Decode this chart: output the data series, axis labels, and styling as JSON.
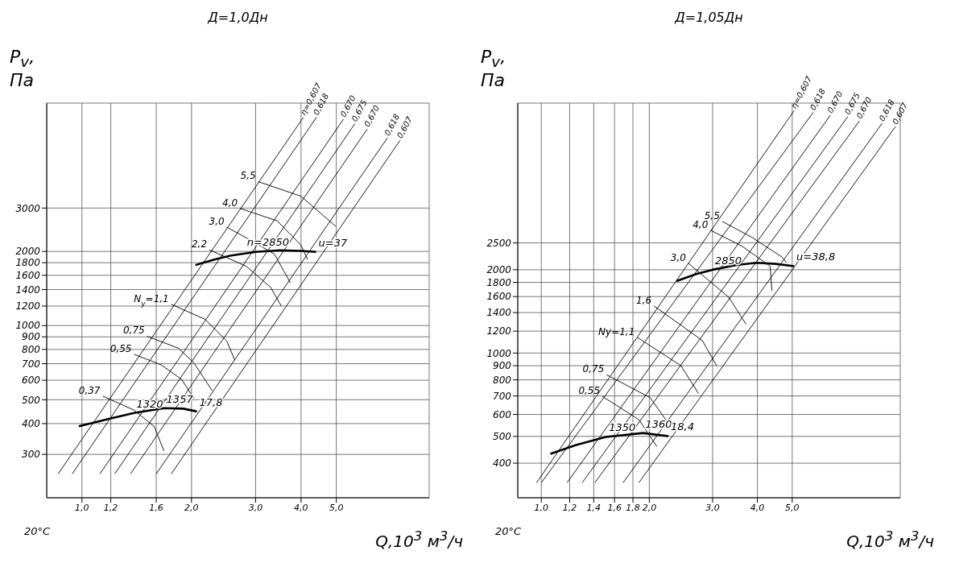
{
  "chart_data": [
    {
      "type": "line",
      "title": "Д=1,0Дн",
      "xlabel": "Q,10$^{3}$ м$^{3}$/ч",
      "ylabel": "P$_{v}$, Па",
      "log": "xy",
      "grid": true,
      "line_style": "solid",
      "marker": "none",
      "xlim": [
        0.8,
        9
      ],
      "ylim": [
        200,
        8000
      ],
      "xticks": [
        {
          "value": 1,
          "label": "1,0"
        },
        {
          "value": 1.2,
          "label": "1,2"
        },
        {
          "value": 1.6,
          "label": "1,6"
        },
        {
          "value": 2,
          "label": "2,0"
        },
        {
          "value": 3,
          "label": "3,0"
        },
        {
          "value": 4,
          "label": "4,0"
        },
        {
          "value": 5,
          "label": "5,0"
        }
      ],
      "yticks": [
        300,
        400,
        500,
        600,
        700,
        800,
        900,
        1000,
        1200,
        1400,
        1600,
        1800,
        2000,
        3000
      ],
      "series": [
        {
          "color": "#000000",
          "x": [
            2.05,
            2.3,
            2.55,
            3.0,
            3.5,
            4.0,
            4.4
          ],
          "values": [
            1760,
            1850,
            1920,
            1990,
            2020,
            2010,
            1990
          ]
        },
        {
          "color": "#000000",
          "x": [
            0.98,
            1.2,
            1.39,
            1.68,
            1.9,
            2.07
          ],
          "values": [
            390,
            420,
            442,
            462,
            460,
            448
          ]
        },
        {
          "name": "η=0,607",
          "color": "#000000",
          "x": [
            0.86,
            4.06
          ],
          "values": [
            250,
            7000
          ]
        },
        {
          "name": "0,618",
          "color": "#000000",
          "x": [
            0.94,
            4.41
          ],
          "values": [
            250,
            7000
          ]
        },
        {
          "name": "0,670",
          "color": "#000000",
          "x": [
            1.12,
            5.23
          ],
          "values": [
            250,
            6880
          ]
        },
        {
          "name": "0,675",
          "color": "#000000",
          "x": [
            1.23,
            5.62
          ],
          "values": [
            250,
            6590
          ]
        },
        {
          "name": "0,670",
          "color": "#000000",
          "x": [
            1.36,
            6.08
          ],
          "values": [
            250,
            6270
          ]
        },
        {
          "name": "0,618",
          "color": "#000000",
          "x": [
            1.6,
            6.91
          ],
          "values": [
            250,
            5780
          ]
        },
        {
          "name": "0,607",
          "color": "#000000",
          "x": [
            1.76,
            7.48
          ],
          "values": [
            250,
            5640
          ]
        },
        {
          "name": "5,5",
          "color": "#000000",
          "x": [
            3.05,
            4.0,
            4.98
          ],
          "values": [
            3840,
            3350,
            2530
          ]
        },
        {
          "name": "4,0",
          "color": "#000000",
          "x": [
            2.72,
            3.44,
            4.0,
            4.17
          ],
          "values": [
            2990,
            2660,
            2120,
            1850
          ]
        },
        {
          "name": "3,0",
          "color": "#000000",
          "x": [
            2.5,
            2.83,
            3.38,
            3.74
          ],
          "values": [
            2510,
            2270,
            1950,
            1490
          ]
        },
        {
          "name": "2,2",
          "color": "#000000",
          "x": [
            2.24,
            2.83,
            3.3,
            3.53
          ],
          "values": [
            2030,
            1740,
            1430,
            1200
          ]
        },
        {
          "name": "N$_{y}$=1,1",
          "color": "#000000",
          "x": [
            1.76,
            2.18,
            2.5,
            2.63
          ],
          "values": [
            1220,
            1060,
            866,
            724
          ]
        },
        {
          "name": "0,75",
          "color": "#000000",
          "x": [
            1.51,
            1.84,
            2.03,
            2.28
          ],
          "values": [
            905,
            810,
            706,
            544
          ]
        },
        {
          "name": "0,55",
          "color": "#000000",
          "x": [
            1.39,
            1.65,
            1.88,
            2.03
          ],
          "values": [
            765,
            693,
            604,
            507
          ]
        },
        {
          "name": "0,37",
          "color": "#000000",
          "x": [
            1.14,
            1.39,
            1.58,
            1.68
          ],
          "values": [
            517,
            454,
            389,
            310
          ]
        }
      ],
      "annotations": [
        {
          "text": "n=2850",
          "x": 2.8,
          "y": 2000
        },
        {
          "text": "u=37",
          "x": 4.4,
          "y": 1990
        },
        {
          "text": "1320",
          "x": 1.39,
          "y": 442
        },
        {
          "text": "1357",
          "x": 1.68,
          "y": 462
        },
        {
          "text": "17,8",
          "x": 2.07,
          "y": 448
        },
        "20°C"
      ]
    },
    {
      "type": "line",
      "title": "Д=1,05Дн",
      "xlabel": "Q,10$^{3}$ м$^{3}$/ч",
      "ylabel": "P$_{v}$, Па",
      "log": "xy",
      "grid": true,
      "line_style": "solid",
      "marker": "none",
      "xlim": [
        0.86,
        10
      ],
      "ylim": [
        300,
        8000
      ],
      "xticks": [
        {
          "value": 1,
          "label": "1,0"
        },
        {
          "value": 1.2,
          "label": "1,2"
        },
        {
          "value": 1.4,
          "label": "1,4"
        },
        {
          "value": 1.6,
          "label": "1,6"
        },
        {
          "value": 1.8,
          "label": "1,8"
        },
        {
          "value": 2,
          "label": "2,0"
        },
        {
          "value": 3,
          "label": "3,0"
        },
        {
          "value": 4,
          "label": "4,0"
        },
        {
          "value": 5,
          "label": "5,0"
        }
      ],
      "yticks": [
        400,
        500,
        600,
        700,
        800,
        900,
        1000,
        1200,
        1400,
        1600,
        1800,
        2000,
        2500
      ],
      "series": [
        {
          "color": "#000000",
          "x": [
            2.38,
            2.7,
            3.0,
            3.5,
            3.98,
            4.5,
            5.06
          ],
          "values": [
            1820,
            1930,
            2000,
            2080,
            2120,
            2100,
            2060
          ]
        },
        {
          "color": "#000000",
          "x": [
            1.06,
            1.25,
            1.52,
            1.92,
            2.26
          ],
          "values": [
            432,
            465,
            498,
            514,
            501
          ]
        },
        {
          "name": "η=0,607",
          "color": "#000000",
          "x": [
            0.97,
            5.06
          ],
          "values": [
            340,
            7510
          ]
        },
        {
          "name": "0,618",
          "color": "#000000",
          "x": [
            1.0,
            5.72
          ],
          "values": [
            340,
            7400
          ]
        },
        {
          "name": "0,670",
          "color": "#000000",
          "x": [
            1.18,
            6.39
          ],
          "values": [
            340,
            7240
          ]
        },
        {
          "name": "0,675",
          "color": "#000000",
          "x": [
            1.3,
            7.14
          ],
          "values": [
            340,
            7140
          ]
        },
        {
          "name": "0,670",
          "color": "#000000",
          "x": [
            1.41,
            7.7
          ],
          "values": [
            340,
            6900
          ]
        },
        {
          "name": "0,618",
          "color": "#000000",
          "x": [
            1.69,
            8.9
          ],
          "values": [
            340,
            6760
          ]
        },
        {
          "name": "0,607",
          "color": "#000000",
          "x": [
            1.87,
            9.7
          ],
          "values": [
            340,
            6580
          ]
        },
        {
          "name": "5,5",
          "color": "#000000",
          "x": [
            3.19,
            3.86,
            4.69,
            4.82
          ],
          "values": [
            2990,
            2620,
            2220,
            2120
          ]
        },
        {
          "name": "4,0",
          "color": "#000000",
          "x": [
            2.96,
            3.63,
            4.34,
            4.39
          ],
          "values": [
            2780,
            2430,
            2060,
            1680
          ]
        },
        {
          "name": "3,0",
          "color": "#000000",
          "x": [
            2.57,
            3.33,
            3.72
          ],
          "values": [
            2110,
            1590,
            1270
          ]
        },
        {
          "name": "1,6",
          "color": "#000000",
          "x": [
            2.06,
            2.81,
            3.08
          ],
          "values": [
            1480,
            1110,
            900
          ]
        },
        {
          "name": "Ny=1,1",
          "color": "#000000",
          "x": [
            1.85,
            2.45,
            2.74
          ],
          "values": [
            1140,
            900,
            715
          ]
        },
        {
          "name": "0,75",
          "color": "#000000",
          "x": [
            1.52,
            2.01,
            2.26
          ],
          "values": [
            835,
            690,
            557
          ]
        },
        {
          "name": "0,55",
          "color": "#000000",
          "x": [
            1.48,
            1.87,
            2.1
          ],
          "values": [
            697,
            575,
            459
          ]
        }
      ],
      "annotations": [
        {
          "text": "2850",
          "x": 3.0,
          "y": 2000
        },
        {
          "text": "u=38,8",
          "x": 5.06,
          "y": 2060
        },
        {
          "text": "1350",
          "x": 1.52,
          "y": 498
        },
        {
          "text": "1360",
          "x": 1.92,
          "y": 514
        },
        {
          "text": "18,4",
          "x": 2.26,
          "y": 501
        },
        "20°C"
      ]
    }
  ]
}
